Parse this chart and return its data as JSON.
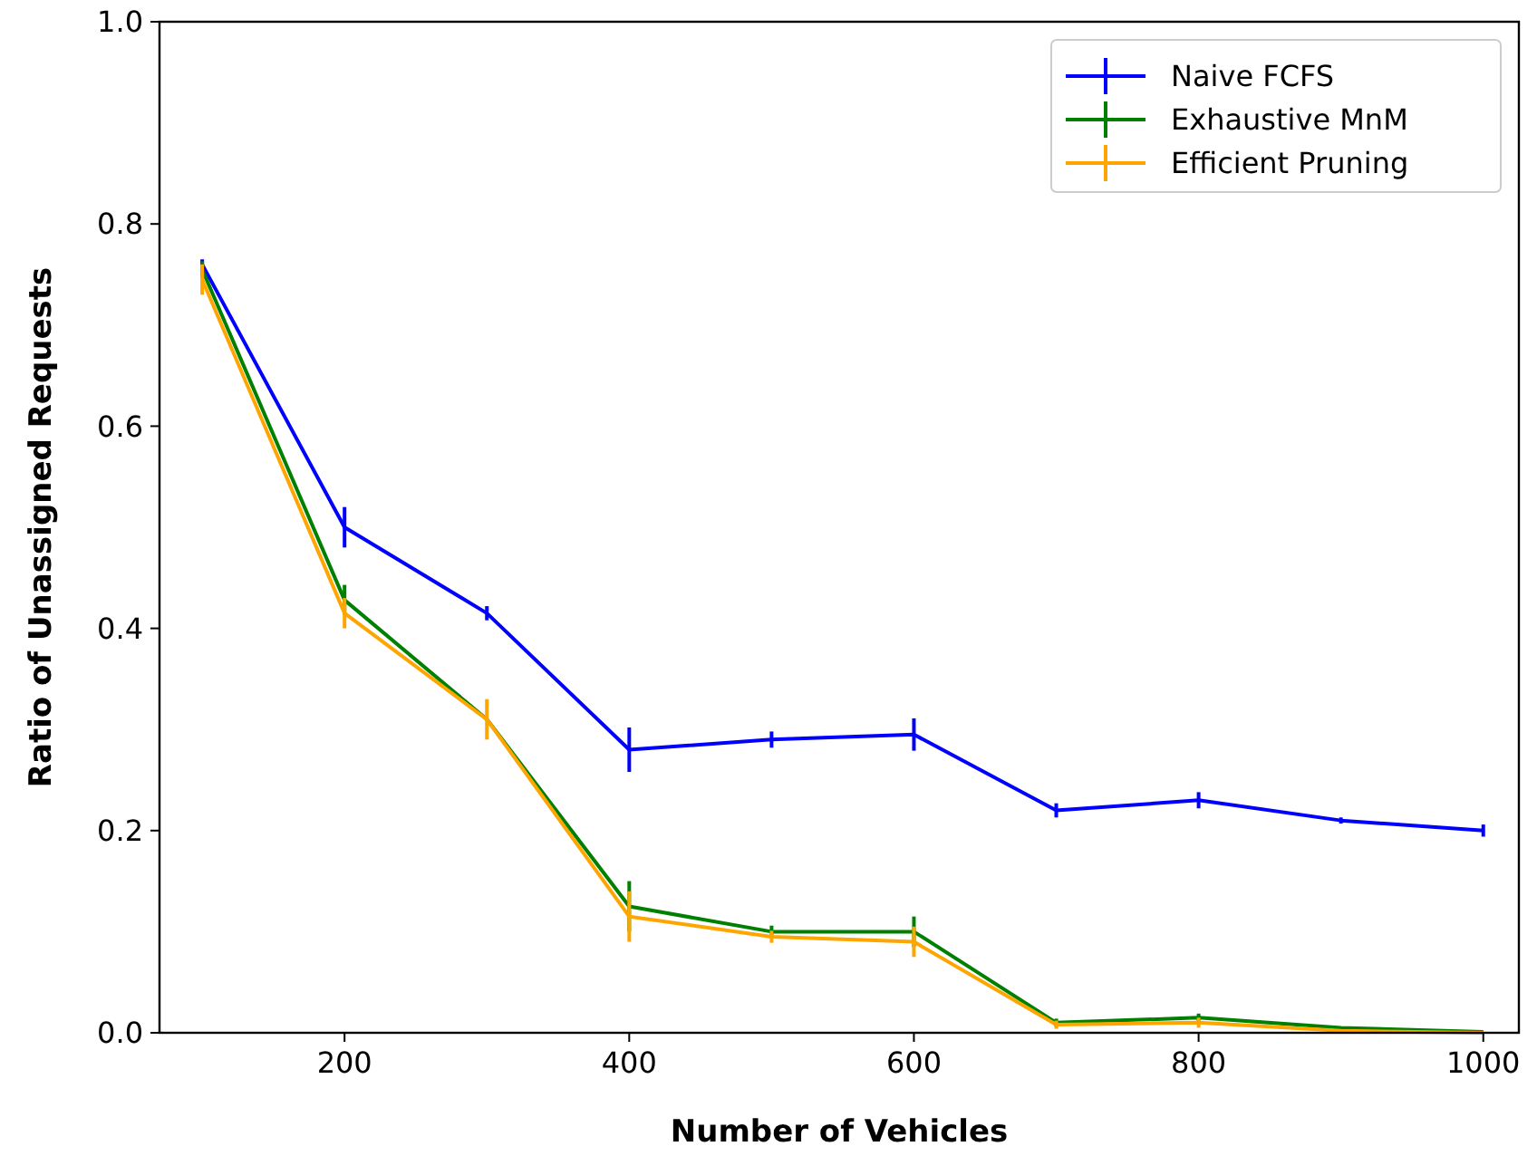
{
  "chart_data": {
    "type": "line",
    "xlabel": "Number of Vehicles",
    "ylabel": "Ratio of Unassigned Requests",
    "x": [
      100,
      200,
      300,
      400,
      500,
      600,
      700,
      800,
      900,
      1000
    ],
    "xlim": [
      70,
      1025
    ],
    "xticks": [
      200,
      400,
      600,
      800,
      1000
    ],
    "ylim": [
      0,
      1
    ],
    "yticks": [
      {
        "value": 0,
        "label": "0.0"
      },
      {
        "value": 0.2,
        "label": "0.2"
      },
      {
        "value": 0.4,
        "label": "0.4"
      },
      {
        "value": 0.6,
        "label": "0.6"
      },
      {
        "value": 0.8,
        "label": "0.8"
      },
      {
        "value": 1,
        "label": "1.0"
      }
    ],
    "grid": false,
    "legend": "top right",
    "marker": "none",
    "line_style": "solid",
    "series": [
      {
        "name": "Naive FCFS",
        "color": "#0000ff",
        "values": [
          0.76,
          0.5,
          0.415,
          0.28,
          0.29,
          0.295,
          0.22,
          0.23,
          0.21,
          0.2
        ],
        "errors": [
          0.005,
          0.02,
          0.007,
          0.022,
          0.008,
          0.016,
          0.007,
          0.008,
          0.003,
          0.006
        ]
      },
      {
        "name": "Exhaustive MnM",
        "color": "#008000",
        "values": [
          0.755,
          0.428,
          0.31,
          0.125,
          0.1,
          0.1,
          0.01,
          0.015,
          0.005,
          0.001
        ],
        "errors": [
          0.008,
          0.015,
          null,
          0.025,
          0.006,
          0.015,
          0.004,
          0.004,
          null,
          null
        ]
      },
      {
        "name": "Efficient Pruning",
        "color": "#ffa500",
        "values": [
          0.745,
          0.415,
          0.31,
          0.115,
          0.095,
          0.09,
          0.008,
          0.01,
          0.002,
          0
        ],
        "errors": [
          0.015,
          0.015,
          0.02,
          0.025,
          0.006,
          0.015,
          0.004,
          0.005,
          null,
          null
        ]
      }
    ]
  }
}
